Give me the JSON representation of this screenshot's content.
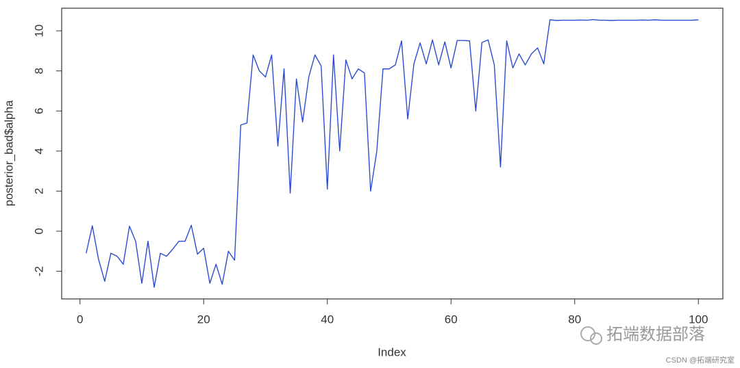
{
  "chart_data": {
    "type": "line",
    "x_label": "Index",
    "y_label": "posterior_bad$alpha",
    "x": [
      1,
      2,
      3,
      4,
      5,
      6,
      7,
      8,
      9,
      10,
      11,
      12,
      13,
      14,
      15,
      16,
      17,
      18,
      19,
      20,
      21,
      22,
      23,
      24,
      25,
      26,
      27,
      28,
      29,
      30,
      31,
      32,
      33,
      34,
      35,
      36,
      37,
      38,
      39,
      40,
      41,
      42,
      43,
      44,
      45,
      46,
      47,
      48,
      49,
      50,
      51,
      52,
      53,
      54,
      55,
      56,
      57,
      58,
      59,
      60,
      61,
      62,
      63,
      64,
      65,
      66,
      67,
      68,
      69,
      70,
      71,
      72,
      73,
      74,
      75,
      76,
      77,
      78,
      79,
      80,
      81,
      82,
      83,
      84,
      85,
      86,
      87,
      88,
      89,
      90,
      91,
      92,
      93,
      94,
      95,
      96,
      97,
      98,
      99,
      100
    ],
    "series": [
      {
        "color": "#2a4bd0",
        "values": [
          -1.1,
          0.27,
          -1.4,
          -2.5,
          -1.1,
          -1.25,
          -1.65,
          0.25,
          -0.5,
          -2.6,
          -0.5,
          -2.8,
          -1.1,
          -1.25,
          -0.9,
          -0.5,
          -0.5,
          0.3,
          -1.15,
          -0.85,
          -2.6,
          -1.65,
          -2.65,
          -1.0,
          -1.45,
          5.3,
          5.4,
          8.8,
          8.0,
          7.7,
          8.8,
          4.25,
          8.1,
          1.9,
          7.6,
          5.45,
          7.7,
          8.8,
          8.25,
          2.1,
          8.8,
          4.0,
          8.55,
          7.6,
          8.1,
          7.9,
          2.0,
          4.0,
          8.1,
          8.1,
          8.3,
          9.5,
          5.6,
          8.35,
          9.4,
          8.35,
          9.55,
          8.3,
          9.45,
          8.15,
          9.52,
          9.52,
          9.5,
          6.0,
          9.42,
          9.55,
          8.3,
          3.2,
          9.5,
          8.15,
          8.85,
          8.3,
          8.85,
          9.15,
          8.35,
          10.55,
          10.52,
          10.53,
          10.53,
          10.53,
          10.54,
          10.53,
          10.56,
          10.53,
          10.53,
          10.52,
          10.53,
          10.53,
          10.53,
          10.53,
          10.54,
          10.53,
          10.55,
          10.53,
          10.53,
          10.53,
          10.53,
          10.53,
          10.53,
          10.55
        ]
      }
    ],
    "xlim": [
      -2.96,
      103.96
    ],
    "ylim": [
      -3.38,
      11.13
    ],
    "xticks": [
      0,
      20,
      40,
      60,
      80,
      100
    ],
    "yticks": [
      -2,
      0,
      2,
      4,
      6,
      8,
      10
    ],
    "grid": false
  },
  "watermark": {
    "text": "拓端数据部落",
    "source": "CSDN @拓端研究室"
  }
}
